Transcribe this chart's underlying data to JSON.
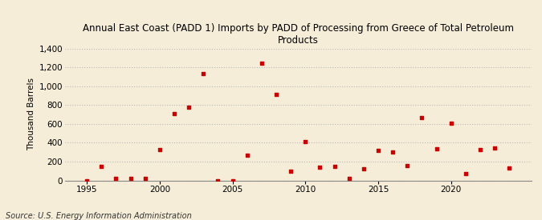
{
  "title": "Annual East Coast (PADD 1) Imports by PADD of Processing from Greece of Total Petroleum\nProducts",
  "ylabel": "Thousand Barrels",
  "source": "Source: U.S. Energy Information Administration",
  "background_color": "#f5edd8",
  "marker_color": "#cc0000",
  "grid_color": "#bbbbbb",
  "xlim": [
    1993.5,
    2025.5
  ],
  "ylim": [
    0,
    1400
  ],
  "yticks": [
    0,
    200,
    400,
    600,
    800,
    1000,
    1200,
    1400
  ],
  "xticks": [
    1995,
    2000,
    2005,
    2010,
    2015,
    2020
  ],
  "data": {
    "1995": 0,
    "1996": 150,
    "1997": 20,
    "1998": 20,
    "1999": 20,
    "2000": 325,
    "2001": 710,
    "2002": 780,
    "2003": 1130,
    "2004": 0,
    "2005": 0,
    "2006": 270,
    "2007": 1240,
    "2008": 910,
    "2009": 100,
    "2010": 410,
    "2011": 140,
    "2012": 150,
    "2013": 25,
    "2014": 120,
    "2015": 320,
    "2016": 300,
    "2017": 160,
    "2018": 670,
    "2019": 335,
    "2020": 610,
    "2021": 70,
    "2022": 325,
    "2023": 340,
    "2024": 130
  }
}
